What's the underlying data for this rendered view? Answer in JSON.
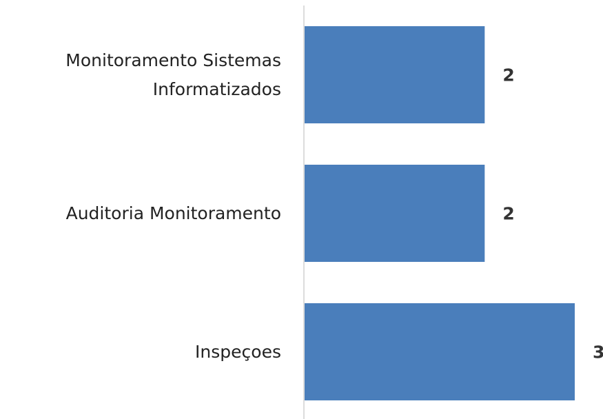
{
  "chart_data": {
    "type": "bar",
    "orientation": "horizontal",
    "categories": [
      "Monitoramento Sistemas Informatizados",
      "Auditoria Monitoramento",
      "Inspeçoes"
    ],
    "values": [
      2,
      2,
      3
    ],
    "color": "#4a7ebb"
  }
}
